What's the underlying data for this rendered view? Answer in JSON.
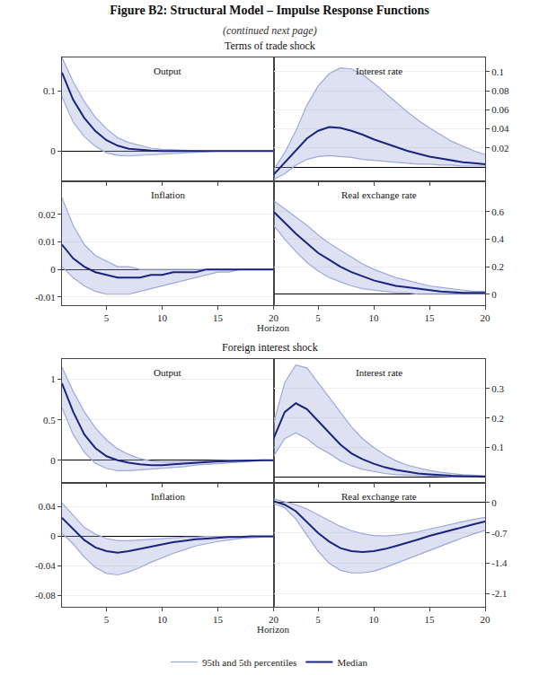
{
  "title": "Figure B2: Structural Model – Impulse Response Functions",
  "subtitle": "(continued next page)",
  "annotations": [
    "Terms of trade shock",
    "Foreign interest shock"
  ],
  "legend": "bottom",
  "chart_data": [
    {
      "type": "line",
      "title": "Output",
      "tick_labels": "y",
      "grid": true,
      "x": [
        1,
        2,
        3,
        4,
        5,
        6,
        7,
        8,
        9,
        10,
        11,
        12,
        13,
        14,
        15,
        16,
        17,
        18,
        19,
        20
      ],
      "xlim": [
        1,
        20
      ],
      "xticks": [
        5,
        10,
        15,
        20
      ],
      "ylim": [
        -0.05,
        0.155
      ],
      "yticks": [
        0,
        0.1
      ],
      "series": [
        {
          "name": "95th and 5th percentiles",
          "color": "#9fa8da",
          "values": [
            0.155,
            0.115,
            0.082,
            0.056,
            0.037,
            0.022,
            0.014,
            0.009,
            0.005,
            0.003,
            0.002,
            0.001,
            0.001,
            0.0,
            0.0,
            0.0,
            0.0,
            0.0,
            0.0,
            0.0
          ]
        },
        {
          "name": "95th and 5th percentiles",
          "color": "#9fa8da",
          "values": [
            0.09,
            0.048,
            0.024,
            0.008,
            -0.003,
            -0.007,
            -0.008,
            -0.007,
            -0.005,
            -0.004,
            -0.003,
            -0.002,
            -0.001,
            -0.001,
            0.0,
            0.0,
            0.0,
            0.0,
            0.0,
            0.0
          ]
        },
        {
          "name": "Median",
          "color": "#1a237e",
          "values": [
            0.13,
            0.085,
            0.055,
            0.033,
            0.018,
            0.009,
            0.004,
            0.002,
            0.001,
            0.0,
            0.0,
            0.0,
            0.0,
            0.0,
            0.0,
            0.0,
            0.0,
            0.0,
            0.0,
            0.0
          ]
        }
      ]
    },
    {
      "type": "line",
      "title": "Interest rate",
      "tick_labels": "y",
      "grid": true,
      "x": [
        1,
        2,
        3,
        4,
        5,
        6,
        7,
        8,
        9,
        10,
        11,
        12,
        13,
        14,
        15,
        16,
        17,
        18,
        19,
        20
      ],
      "xlim": [
        1,
        20
      ],
      "xticks": [
        5,
        10,
        15,
        20
      ],
      "ylim": [
        -0.015,
        0.115
      ],
      "yticks": [
        0.02,
        0.04,
        0.06,
        0.08,
        0.1
      ],
      "series": [
        {
          "name": "95th and 5th percentiles",
          "color": "#9fa8da",
          "values": [
            -0.003,
            0.015,
            0.038,
            0.065,
            0.085,
            0.098,
            0.104,
            0.103,
            0.097,
            0.088,
            0.078,
            0.068,
            0.058,
            0.049,
            0.041,
            0.034,
            0.027,
            0.022,
            0.017,
            0.013
          ]
        },
        {
          "name": "95th and 5th percentiles",
          "color": "#9fa8da",
          "values": [
            -0.013,
            -0.007,
            0.002,
            0.008,
            0.011,
            0.012,
            0.011,
            0.01,
            0.008,
            0.007,
            0.006,
            0.005,
            0.004,
            0.003,
            0.003,
            0.002,
            0.002,
            0.001,
            0.001,
            0.001
          ]
        },
        {
          "name": "Median",
          "color": "#1a237e",
          "values": [
            -0.008,
            0.005,
            0.018,
            0.03,
            0.038,
            0.042,
            0.041,
            0.038,
            0.034,
            0.029,
            0.025,
            0.021,
            0.017,
            0.014,
            0.011,
            0.009,
            0.007,
            0.005,
            0.004,
            0.003
          ]
        }
      ]
    },
    {
      "type": "line",
      "title": "Inflation",
      "xlabel": "Horizon",
      "grid": true,
      "x": [
        1,
        2,
        3,
        4,
        5,
        6,
        7,
        8,
        9,
        10,
        11,
        12,
        13,
        14,
        15,
        16,
        17,
        18,
        19,
        20
      ],
      "xlim": [
        1,
        20
      ],
      "xticks": [
        5,
        10,
        15,
        20
      ],
      "ylim": [
        -0.013,
        0.032
      ],
      "yticks": [
        -0.01,
        0,
        0.01,
        0.02
      ],
      "series": [
        {
          "name": "95th and 5th percentiles",
          "color": "#9fa8da",
          "values": [
            0.026,
            0.016,
            0.009,
            0.005,
            0.003,
            0.001,
            0.001,
            0.0,
            0.0,
            0.0,
            0.0,
            0.0,
            0.0,
            0.0,
            0.0,
            0.0,
            0.0,
            0.0,
            0.0,
            0.0
          ]
        },
        {
          "name": "95th and 5th percentiles",
          "color": "#9fa8da",
          "values": [
            0.001,
            -0.003,
            -0.006,
            -0.008,
            -0.009,
            -0.009,
            -0.009,
            -0.008,
            -0.007,
            -0.006,
            -0.005,
            -0.004,
            -0.003,
            -0.002,
            -0.001,
            -0.001,
            0.0,
            0.0,
            0.0,
            0.0
          ]
        },
        {
          "name": "Median",
          "color": "#1a237e",
          "values": [
            0.009,
            0.004,
            0.001,
            -0.001,
            -0.002,
            -0.003,
            -0.003,
            -0.003,
            -0.002,
            -0.002,
            -0.001,
            -0.001,
            -0.001,
            0.0,
            0.0,
            0.0,
            0.0,
            0.0,
            0.0,
            0.0
          ]
        }
      ]
    },
    {
      "type": "line",
      "title": "Real exchange rate",
      "grid": true,
      "x": [
        1,
        2,
        3,
        4,
        5,
        6,
        7,
        8,
        9,
        10,
        11,
        12,
        13,
        14,
        15,
        16,
        17,
        18,
        19,
        20
      ],
      "xlim": [
        1,
        20
      ],
      "xticks": [
        5,
        10,
        15,
        20
      ],
      "ylim": [
        -0.08,
        0.82
      ],
      "yticks": [
        0,
        0.2,
        0.4,
        0.6
      ],
      "series": [
        {
          "name": "95th and 5th percentiles",
          "color": "#9fa8da",
          "values": [
            0.68,
            0.62,
            0.56,
            0.5,
            0.43,
            0.37,
            0.32,
            0.27,
            0.22,
            0.18,
            0.15,
            0.12,
            0.1,
            0.08,
            0.06,
            0.05,
            0.04,
            0.03,
            0.02,
            0.02
          ]
        },
        {
          "name": "95th and 5th percentiles",
          "color": "#9fa8da",
          "values": [
            0.5,
            0.4,
            0.31,
            0.23,
            0.17,
            0.12,
            0.09,
            0.06,
            0.04,
            0.03,
            0.02,
            0.01,
            0.01,
            0.0,
            0.0,
            0.0,
            0.0,
            0.0,
            0.0,
            0.0
          ]
        },
        {
          "name": "Median",
          "color": "#1a237e",
          "values": [
            0.6,
            0.52,
            0.44,
            0.37,
            0.3,
            0.25,
            0.2,
            0.16,
            0.13,
            0.1,
            0.08,
            0.06,
            0.05,
            0.04,
            0.03,
            0.02,
            0.015,
            0.01,
            0.01,
            0.01
          ]
        }
      ]
    },
    {
      "type": "line",
      "title": "Output",
      "tick_labels": "y",
      "grid": true,
      "x": [
        1,
        2,
        3,
        4,
        5,
        6,
        7,
        8,
        9,
        10,
        11,
        12,
        13,
        14,
        15,
        16,
        17,
        18,
        19,
        20
      ],
      "xlim": [
        1,
        20
      ],
      "xticks": [
        5,
        10,
        15,
        20
      ],
      "ylim": [
        -0.28,
        1.25
      ],
      "yticks": [
        0,
        0.5,
        1
      ],
      "series": [
        {
          "name": "95th and 5th percentiles",
          "color": "#9fa8da",
          "values": [
            1.15,
            0.85,
            0.6,
            0.4,
            0.25,
            0.14,
            0.07,
            0.02,
            -0.01,
            -0.02,
            -0.02,
            -0.015,
            -0.01,
            -0.005,
            -0.002,
            0.0,
            0.0,
            0.0,
            0.0,
            0.0
          ]
        },
        {
          "name": "95th and 5th percentiles",
          "color": "#9fa8da",
          "values": [
            0.65,
            0.32,
            0.1,
            -0.04,
            -0.1,
            -0.13,
            -0.13,
            -0.12,
            -0.11,
            -0.1,
            -0.09,
            -0.08,
            -0.06,
            -0.05,
            -0.04,
            -0.03,
            -0.02,
            -0.01,
            -0.005,
            -0.002
          ]
        },
        {
          "name": "Median",
          "color": "#1a237e",
          "values": [
            0.95,
            0.6,
            0.32,
            0.15,
            0.05,
            0.0,
            -0.03,
            -0.05,
            -0.06,
            -0.06,
            -0.05,
            -0.04,
            -0.03,
            -0.02,
            -0.015,
            -0.01,
            -0.005,
            -0.003,
            -0.001,
            0.0
          ]
        }
      ]
    },
    {
      "type": "line",
      "title": "Interest rate",
      "tick_labels": "y",
      "grid": true,
      "x": [
        1,
        2,
        3,
        4,
        5,
        6,
        7,
        8,
        9,
        10,
        11,
        12,
        13,
        14,
        15,
        16,
        17,
        18,
        19,
        20
      ],
      "xlim": [
        1,
        20
      ],
      "xticks": [
        5,
        10,
        15,
        20
      ],
      "ylim": [
        -0.02,
        0.4
      ],
      "yticks": [
        0.1,
        0.2,
        0.3
      ],
      "series": [
        {
          "name": "95th and 5th percentiles",
          "color": "#9fa8da",
          "values": [
            0.18,
            0.32,
            0.38,
            0.37,
            0.32,
            0.27,
            0.22,
            0.17,
            0.13,
            0.1,
            0.075,
            0.055,
            0.04,
            0.03,
            0.022,
            0.016,
            0.011,
            0.008,
            0.006,
            0.004
          ]
        },
        {
          "name": "95th and 5th percentiles",
          "color": "#9fa8da",
          "values": [
            0.07,
            0.13,
            0.15,
            0.13,
            0.1,
            0.08,
            0.055,
            0.038,
            0.026,
            0.018,
            0.012,
            0.008,
            0.006,
            0.004,
            0.003,
            0.002,
            0.001,
            0.001,
            0.0,
            0.0
          ]
        },
        {
          "name": "Median",
          "color": "#1a237e",
          "values": [
            0.13,
            0.22,
            0.25,
            0.23,
            0.19,
            0.15,
            0.11,
            0.08,
            0.06,
            0.045,
            0.033,
            0.024,
            0.017,
            0.012,
            0.009,
            0.006,
            0.004,
            0.003,
            0.002,
            0.001
          ]
        }
      ]
    },
    {
      "type": "line",
      "title": "Inflation",
      "xlabel": "Horizon",
      "grid": true,
      "x": [
        1,
        2,
        3,
        4,
        5,
        6,
        7,
        8,
        9,
        10,
        11,
        12,
        13,
        14,
        15,
        16,
        17,
        18,
        19,
        20
      ],
      "xlim": [
        1,
        20
      ],
      "xticks": [
        5,
        10,
        15,
        20
      ],
      "ylim": [
        -0.095,
        0.072
      ],
      "yticks": [
        -0.08,
        -0.04,
        0,
        0.04
      ],
      "series": [
        {
          "name": "95th and 5th percentiles",
          "color": "#9fa8da",
          "values": [
            0.045,
            0.028,
            0.012,
            0.003,
            -0.003,
            -0.006,
            -0.006,
            -0.005,
            -0.004,
            -0.003,
            -0.002,
            -0.001,
            -0.001,
            0.0,
            0.0,
            0.0,
            0.0,
            0.0,
            0.0,
            0.0
          ]
        },
        {
          "name": "95th and 5th percentiles",
          "color": "#9fa8da",
          "values": [
            0.004,
            -0.01,
            -0.028,
            -0.042,
            -0.05,
            -0.052,
            -0.048,
            -0.042,
            -0.035,
            -0.029,
            -0.023,
            -0.018,
            -0.013,
            -0.01,
            -0.007,
            -0.005,
            -0.003,
            -0.002,
            -0.001,
            -0.001
          ]
        },
        {
          "name": "Median",
          "color": "#1a237e",
          "values": [
            0.025,
            0.01,
            -0.005,
            -0.015,
            -0.02,
            -0.022,
            -0.02,
            -0.017,
            -0.014,
            -0.011,
            -0.008,
            -0.006,
            -0.004,
            -0.003,
            -0.002,
            -0.001,
            -0.001,
            0.0,
            0.0,
            0.0
          ]
        }
      ]
    },
    {
      "type": "line",
      "title": "Real exchange rate",
      "grid": true,
      "x": [
        1,
        2,
        3,
        4,
        5,
        6,
        7,
        8,
        9,
        10,
        11,
        12,
        13,
        14,
        15,
        16,
        17,
        18,
        19,
        20
      ],
      "xlim": [
        1,
        20
      ],
      "xticks": [
        5,
        10,
        15,
        20
      ],
      "ylim": [
        -2.4,
        0.45
      ],
      "yticks": [
        -2.1,
        -1.4,
        -0.7,
        0
      ],
      "series": [
        {
          "name": "95th and 5th percentiles",
          "color": "#9fa8da",
          "values": [
            0.08,
            0.02,
            -0.05,
            -0.15,
            -0.28,
            -0.42,
            -0.55,
            -0.65,
            -0.72,
            -0.76,
            -0.77,
            -0.75,
            -0.72,
            -0.67,
            -0.61,
            -0.55,
            -0.5,
            -0.44,
            -0.39,
            -0.34
          ]
        },
        {
          "name": "95th and 5th percentiles",
          "color": "#9fa8da",
          "values": [
            -0.03,
            -0.12,
            -0.38,
            -0.75,
            -1.12,
            -1.4,
            -1.56,
            -1.62,
            -1.62,
            -1.58,
            -1.5,
            -1.4,
            -1.3,
            -1.2,
            -1.1,
            -1.0,
            -0.9,
            -0.81,
            -0.72,
            -0.64
          ]
        },
        {
          "name": "Median",
          "color": "#1a237e",
          "values": [
            0.03,
            -0.05,
            -0.2,
            -0.45,
            -0.7,
            -0.9,
            -1.05,
            -1.12,
            -1.14,
            -1.12,
            -1.07,
            -1.0,
            -0.93,
            -0.85,
            -0.77,
            -0.7,
            -0.63,
            -0.56,
            -0.5,
            -0.44
          ]
        }
      ]
    }
  ]
}
